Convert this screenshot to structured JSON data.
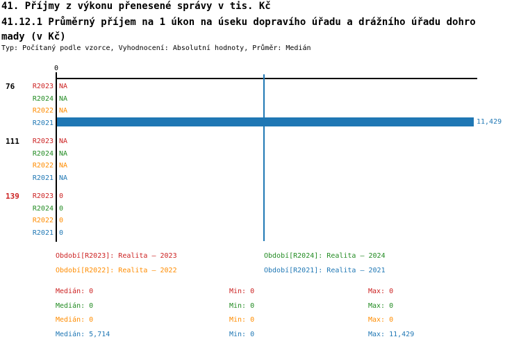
{
  "header": {
    "title_line1": "41. Příjmy z výkonu přenesené správy v tis. Kč",
    "title_line2": "41.12.1 Průměrný příjem na 1 úkon na úseku dopravího úřadu a drážního úřadu dohro",
    "title_line3": "mady (v Kč)",
    "meta_line": "Typ: Počítaný podle vzorce, Vyhodnocení: Absolutní hodnoty, Průměr: Medián"
  },
  "colors": {
    "red": "#CC2222",
    "green": "#228B22",
    "orange": "#FF8C00",
    "blue": "#1F77B4",
    "axis": "#000000"
  },
  "chart_data": {
    "type": "bar",
    "orientation": "horizontal",
    "title": "41.12.1 Průměrný příjem na 1 úkon na úseku dopravího úřadu a drážního úřadu dohromady (v Kč)",
    "axis": {
      "tick_label": "0",
      "min": 0,
      "max": 11429,
      "grid": false
    },
    "median_line_value": 5714,
    "categories": [
      "76",
      "111",
      "139"
    ],
    "series_order": [
      "R2023",
      "R2024",
      "R2022",
      "R2021"
    ],
    "groups": [
      {
        "label": "76",
        "label_color": "#000000",
        "rows": [
          {
            "series": "R2023",
            "value_text": "NA",
            "value": null,
            "bar": false,
            "color": "#CC2222"
          },
          {
            "series": "R2024",
            "value_text": "NA",
            "value": null,
            "bar": false,
            "color": "#228B22"
          },
          {
            "series": "R2022",
            "value_text": "NA",
            "value": null,
            "bar": false,
            "color": "#FF8C00"
          },
          {
            "series": "R2021",
            "value_text": "11,429",
            "value": 11429,
            "bar": true,
            "color": "#1F77B4"
          }
        ]
      },
      {
        "label": "111",
        "label_color": "#000000",
        "rows": [
          {
            "series": "R2023",
            "value_text": "NA",
            "value": null,
            "bar": false,
            "color": "#CC2222"
          },
          {
            "series": "R2024",
            "value_text": "NA",
            "value": null,
            "bar": false,
            "color": "#228B22"
          },
          {
            "series": "R2022",
            "value_text": "NA",
            "value": null,
            "bar": false,
            "color": "#FF8C00"
          },
          {
            "series": "R2021",
            "value_text": "NA",
            "value": null,
            "bar": false,
            "color": "#1F77B4"
          }
        ]
      },
      {
        "label": "139",
        "label_color": "#CC2222",
        "rows": [
          {
            "series": "R2023",
            "value_text": "0",
            "value": 0,
            "bar": false,
            "color": "#CC2222"
          },
          {
            "series": "R2024",
            "value_text": "0",
            "value": 0,
            "bar": false,
            "color": "#228B22"
          },
          {
            "series": "R2022",
            "value_text": "0",
            "value": 0,
            "bar": false,
            "color": "#FF8C00"
          },
          {
            "series": "R2021",
            "value_text": "0",
            "value": 0,
            "bar": false,
            "color": "#1F77B4"
          }
        ]
      }
    ]
  },
  "legend": {
    "periods": [
      {
        "text": "Období[R2023]: Realita – 2023",
        "color": "#CC2222",
        "col": 0,
        "row": 0
      },
      {
        "text": "Období[R2024]: Realita – 2024",
        "color": "#228B22",
        "col": 1,
        "row": 0
      },
      {
        "text": "Období[R2022]: Realita – 2022",
        "color": "#FF8C00",
        "col": 0,
        "row": 1
      },
      {
        "text": "Období[R2021]: Realita – 2021",
        "color": "#1F77B4",
        "col": 1,
        "row": 1
      }
    ],
    "stats": [
      {
        "median": "Medián: 0",
        "min": "Min: 0",
        "max": "Max: 0",
        "color": "#CC2222"
      },
      {
        "median": "Medián: 0",
        "min": "Min: 0",
        "max": "Max: 0",
        "color": "#228B22"
      },
      {
        "median": "Medián: 0",
        "min": "Min: 0",
        "max": "Max: 0",
        "color": "#FF8C00"
      },
      {
        "median": "Medián: 5,714",
        "min": "Min: 0",
        "max": "Max: 11,429",
        "color": "#1F77B4"
      }
    ]
  }
}
